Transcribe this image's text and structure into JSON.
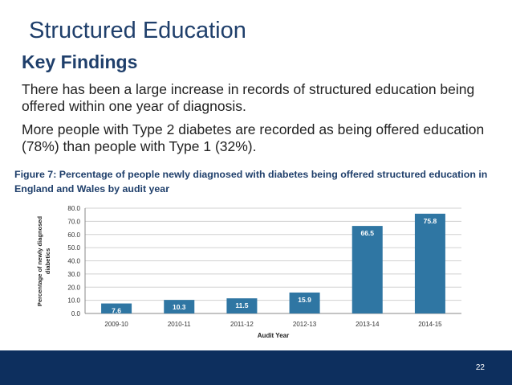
{
  "slide": {
    "title": "Structured Education",
    "subtitle": "Key Findings",
    "findings": [
      "There has been a large increase in records of structured education being offered within one year of diagnosis.",
      "More people with Type 2 diabetes are recorded as being offered education (78%) than people with Type 1 (32%)."
    ],
    "figure_caption": "Figure 7: Percentage of people newly diagnosed with diabetes being offered structured education in England and Wales by audit year",
    "page_number": "22"
  },
  "colors": {
    "bar": "#2f76a3",
    "title": "#1f3f6b",
    "footer": "#0d2f5e",
    "bar_label": "#ffffff",
    "gridline": "#d0d0d0"
  },
  "chart_data": {
    "type": "bar",
    "categories": [
      "2009-10",
      "2010-11",
      "2011-12",
      "2012-13",
      "2013-14",
      "2014-15"
    ],
    "values": [
      7.6,
      10.3,
      11.5,
      15.9,
      66.5,
      75.8
    ],
    "value_labels": [
      "7.6",
      "10.3",
      "11.5",
      "15.9",
      "66.5",
      "75.8"
    ],
    "title": "",
    "xlabel": "Audit Year",
    "ylabel_lines": [
      "Percentage of newly diagnosed",
      "diabetics"
    ],
    "ylim": [
      0,
      80
    ],
    "y_ticks": [
      "0.0",
      "10.0",
      "20.0",
      "30.0",
      "40.0",
      "50.0",
      "60.0",
      "70.0",
      "80.0"
    ],
    "grid": true,
    "legend": "none"
  }
}
